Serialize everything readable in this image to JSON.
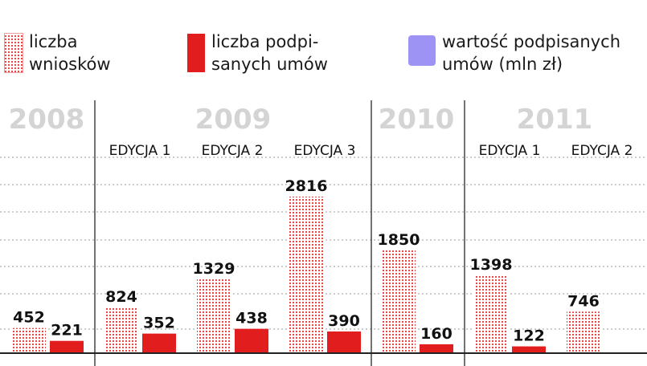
{
  "chart_data": {
    "type": "bar",
    "title": "",
    "xlabel": "",
    "ylabel": "",
    "legend": [
      {
        "key": "wnioski",
        "label": "liczba\nwniosków",
        "style": "hatched",
        "color": "#e84545"
      },
      {
        "key": "umowy",
        "label": "liczba podpi-\nsanych umów",
        "style": "solid",
        "color": "#e11d1d"
      },
      {
        "key": "wartosc",
        "label": "wartość podpisanych\numów (mln zł)",
        "style": "solid",
        "color": "#9c93f5"
      }
    ],
    "years": [
      "2008",
      "2009",
      "2010",
      "2011"
    ],
    "groups": [
      {
        "year": "2008",
        "edition": "",
        "wnioski": 452,
        "umowy": 221
      },
      {
        "year": "2009",
        "edition": "EDYCJA 1",
        "wnioski": 824,
        "umowy": 352
      },
      {
        "year": "2009",
        "edition": "EDYCJA 2",
        "wnioski": 1329,
        "umowy": 438
      },
      {
        "year": "2009",
        "edition": "EDYCJA 3",
        "wnioski": 2816,
        "umowy": 390
      },
      {
        "year": "2010",
        "edition": "",
        "wnioski": 1850,
        "umowy": 160
      },
      {
        "year": "2011",
        "edition": "EDYCJA 1",
        "wnioski": 1398,
        "umowy": 122
      },
      {
        "year": "2011",
        "edition": "EDYCJA 2",
        "wnioski": 746,
        "umowy": null
      }
    ],
    "ylim": [
      0,
      3000
    ],
    "grid": true,
    "legend_position": "top"
  }
}
